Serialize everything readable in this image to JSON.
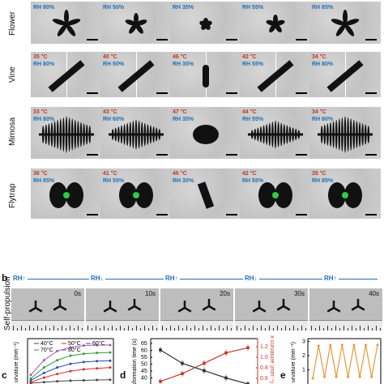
{
  "rows": [
    {
      "label": "Flower",
      "panels": [
        {
          "rh": "RH 80%",
          "t": ""
        },
        {
          "rh": "RH 50%",
          "t": ""
        },
        {
          "rh": "RH 35%",
          "t": ""
        },
        {
          "rh": "RH 55%",
          "t": ""
        },
        {
          "rh": "RH 85%",
          "t": ""
        }
      ]
    },
    {
      "label": "Vine",
      "panels": [
        {
          "rh": "RH 80%",
          "t": "35 °C"
        },
        {
          "rh": "RH 50%",
          "t": "40 °C"
        },
        {
          "rh": "RH 35%",
          "t": "46 °C"
        },
        {
          "rh": "RH 55%",
          "t": "42 °C"
        },
        {
          "rh": "RH 80%",
          "t": "34 °C"
        }
      ]
    },
    {
      "label": "Mimosa",
      "panels": [
        {
          "rh": "RH 80%",
          "t": "33 °C"
        },
        {
          "rh": "RH 60%",
          "t": "43 °C"
        },
        {
          "rh": "RH 35%",
          "t": "47 °C"
        },
        {
          "rh": "RH 55%",
          "t": "44 °C"
        },
        {
          "rh": "RH 80%",
          "t": "34 °C"
        }
      ]
    },
    {
      "label": "Flytrap",
      "panels": [
        {
          "rh": "RH 85%",
          "t": "36 °C"
        },
        {
          "rh": "RH 55%",
          "t": "41 °C"
        },
        {
          "rh": "RH 30%",
          "t": "46 °C"
        },
        {
          "rh": "RH 55%",
          "t": "42 °C"
        },
        {
          "rh": "RH 85%",
          "t": "35 °C"
        }
      ]
    }
  ],
  "panel_b": {
    "letter": "b",
    "row_label": "Self-propulsion",
    "rh_marks": [
      "RH↑",
      "RH↓",
      "RH↑",
      "RH↓",
      "RH↑"
    ],
    "times": [
      "0s",
      "10s",
      "20s",
      "30s",
      "40s"
    ]
  },
  "panel_c": {
    "letter": "c",
    "ylabel": "urvature (mm⁻¹)",
    "legend": [
      "40°C",
      "50°C",
      "60°C",
      "70°C",
      "80°C"
    ],
    "legend_colors": [
      "#444444",
      "#e0262b",
      "#1f4fb5",
      "#2e9d3a",
      "#9b59b6"
    ]
  },
  "panel_d": {
    "letter": "d",
    "ylabel_left": "sformation time (s)",
    "ylabel_right": "x curvature (mm⁻¹)",
    "left_ticks": [
      "65",
      "60",
      "55",
      "50",
      "45",
      "40",
      "35"
    ],
    "right_ticks": [
      "1.2",
      "1.0",
      "0.8",
      "0.6"
    ]
  },
  "panel_e": {
    "letter": "e",
    "ylabel": "urvature (mm⁻¹)",
    "ticks": [
      "3",
      "2",
      "1"
    ]
  },
  "chart_data": [
    {
      "type": "line",
      "title": "",
      "xlabel": "",
      "ylabel": "urvature (mm⁻¹)",
      "series": [
        {
          "name": "40°C",
          "values": [
            0.05,
            0.1,
            0.15,
            0.18,
            0.2,
            0.22,
            0.23
          ]
        },
        {
          "name": "50°C",
          "values": [
            0.1,
            0.35,
            0.55,
            0.7,
            0.8,
            0.85,
            0.9
          ]
        },
        {
          "name": "60°C",
          "values": [
            0.2,
            0.6,
            0.9,
            1.1,
            1.2,
            1.25,
            1.27
          ]
        },
        {
          "name": "70°C",
          "values": [
            0.3,
            0.9,
            1.3,
            1.55,
            1.65,
            1.7,
            1.72
          ]
        },
        {
          "name": "80°C",
          "values": [
            0.5,
            1.3,
            1.8,
            2.0,
            2.1,
            2.12,
            2.13
          ]
        }
      ],
      "x": [
        0,
        1,
        2,
        3,
        4,
        5,
        6
      ],
      "ylim": [
        0,
        2.3
      ]
    },
    {
      "type": "line",
      "title": "",
      "xlabel": "",
      "ylabel": "sformation time (s)",
      "y2label": "x curvature (mm⁻¹)",
      "x": [
        0,
        1,
        2,
        3,
        4
      ],
      "series": [
        {
          "name": "",
          "axis": "left",
          "values": [
            63,
            52,
            46,
            40,
            35
          ]
        },
        {
          "name": "",
          "axis": "right",
          "values": [
            0.55,
            0.7,
            0.9,
            1.1,
            1.2
          ]
        }
      ],
      "ylim": [
        35,
        67
      ],
      "y2lim": [
        0.5,
        1.25
      ]
    },
    {
      "type": "line",
      "title": "",
      "xlabel": "",
      "ylabel": "urvature (mm⁻¹)",
      "series": [
        {
          "name": "",
          "values": [
            0.4,
            2.7,
            0.5,
            2.75,
            0.5,
            2.75,
            0.5,
            2.75,
            0.5,
            2.75,
            0.5,
            2.75
          ]
        }
      ],
      "ylim": [
        0,
        3.2
      ]
    }
  ]
}
